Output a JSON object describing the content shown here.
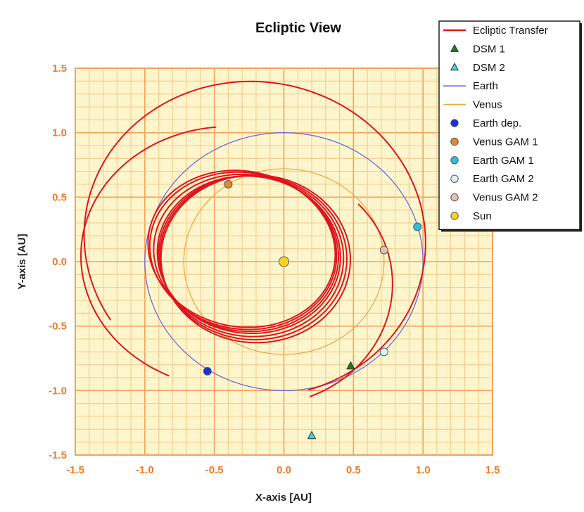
{
  "chart_data": {
    "type": "scatter",
    "title": "Ecliptic View",
    "xlabel": "X-axis [AU]",
    "ylabel": "Y-axis [AU]",
    "xlim": [
      -1.5,
      1.5
    ],
    "ylim": [
      -1.5,
      1.5
    ],
    "xticks": [
      "-1.5",
      "-1.0",
      "-0.5",
      "0.0",
      "0.5",
      "1.0",
      "1.5"
    ],
    "yticks": [
      "1.5",
      "1.0",
      "0.5",
      "0.0",
      "-0.5",
      "-1.0",
      "-1.5"
    ],
    "grid": true,
    "legend_position": "top-right",
    "colors": {
      "plot_bg": "#fdf6cc",
      "grid_minor": "#f6c98c",
      "grid_major": "#f2a25a",
      "ticks": "#f07a2a"
    },
    "series": [
      {
        "name": "Ecliptic Transfer",
        "kind": "line",
        "color": "#e0141c"
      },
      {
        "name": "DSM 1",
        "kind": "marker",
        "marker": "triangle",
        "color": "#1b7a1b",
        "x": 0.48,
        "y": -0.81
      },
      {
        "name": "DSM 2",
        "kind": "marker",
        "marker": "triangle",
        "color": "#35d6e6",
        "x": 0.2,
        "y": -1.35
      },
      {
        "name": "Earth",
        "kind": "orbit",
        "color": "#6a6ae0",
        "radius": 1.0
      },
      {
        "name": "Venus",
        "kind": "orbit",
        "color": "#f4a640",
        "radius": 0.72
      },
      {
        "name": "Earth dep.",
        "kind": "marker",
        "marker": "circle",
        "color": "#1f2fd6",
        "x": -0.55,
        "y": -0.85
      },
      {
        "name": "Venus GAM 1",
        "kind": "marker",
        "marker": "circle",
        "color": "#e08a2a",
        "x": -0.4,
        "y": 0.6
      },
      {
        "name": "Earth GAM 1",
        "kind": "marker",
        "marker": "circle",
        "color": "#2cc0e0",
        "x": 0.96,
        "y": 0.27
      },
      {
        "name": "Earth GAM 2",
        "kind": "marker",
        "marker": "circle",
        "color": "#d8f4f4",
        "x": 0.72,
        "y": -0.7
      },
      {
        "name": "Venus GAM 2",
        "kind": "marker",
        "marker": "circle",
        "color": "#e8c2a8",
        "x": 0.72,
        "y": 0.09
      },
      {
        "name": "Sun",
        "kind": "marker",
        "marker": "circle",
        "color": "#ffd21a",
        "x": 0.0,
        "y": 0.0
      }
    ]
  }
}
